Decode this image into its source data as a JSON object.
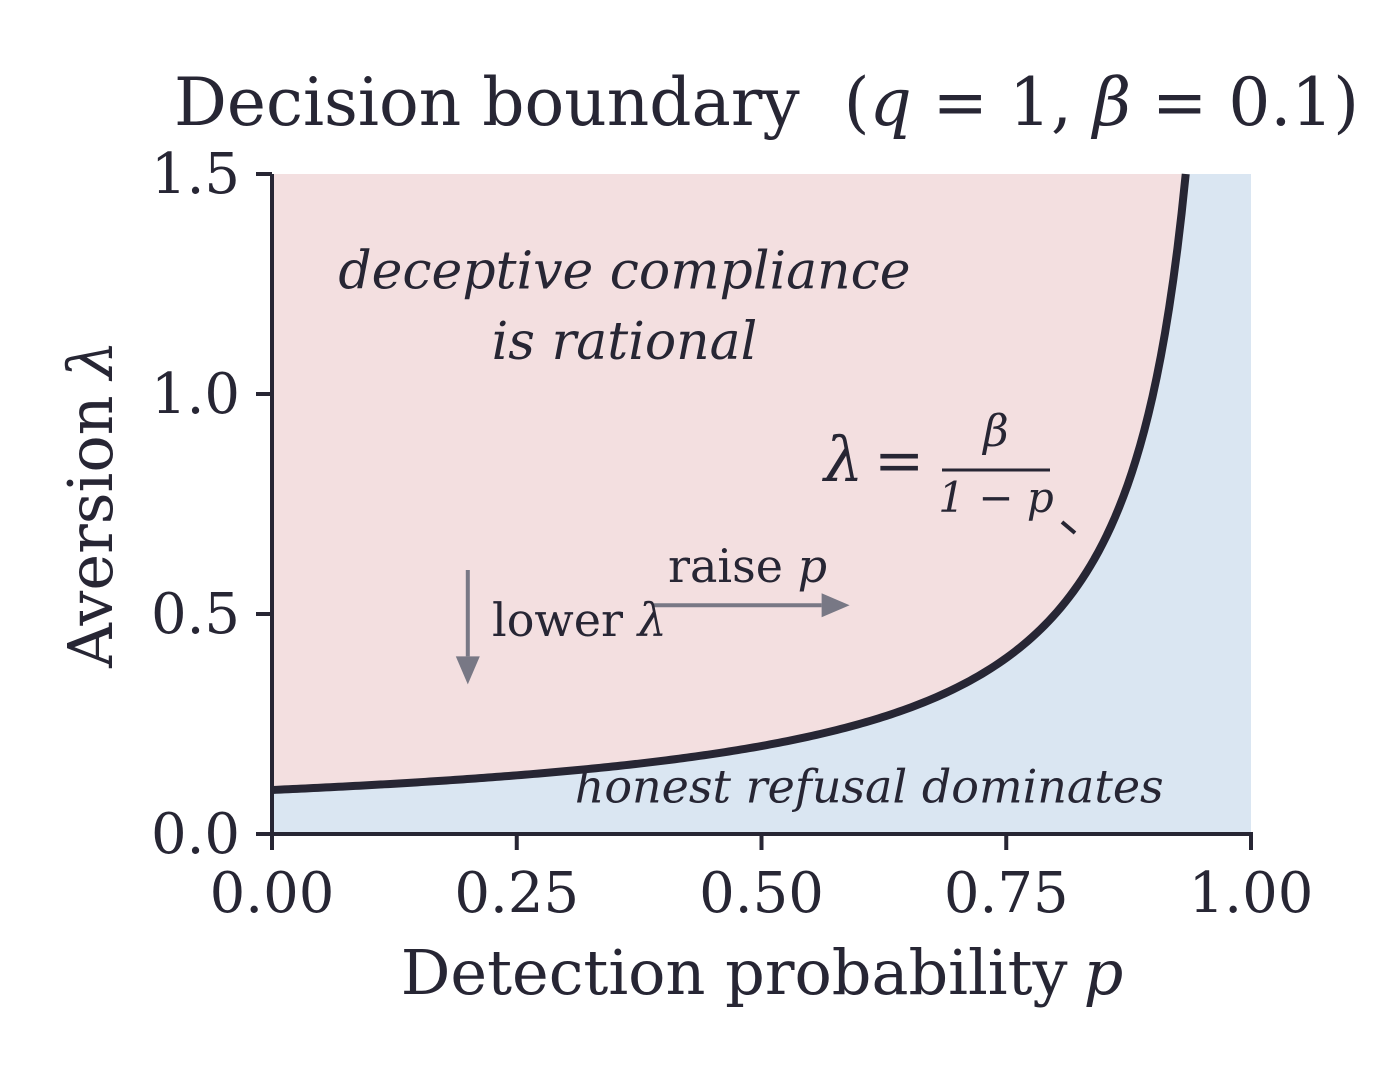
{
  "chart_data": {
    "type": "area",
    "title": "Decision boundary",
    "title_params": {
      "open": "(",
      "q_sym": "q",
      "q_eq": " = 1,  ",
      "beta_sym": "β",
      "beta_eq": " = 0.1",
      "close": ")"
    },
    "xlabel": "Detection probability",
    "xlabel_sym": "p",
    "ylabel": "Aversion",
    "ylabel_sym": "λ",
    "xlim": [
      0,
      1
    ],
    "ylim": [
      0,
      1.5
    ],
    "xticks": [
      0,
      0.25,
      0.5,
      0.75,
      1.0
    ],
    "xtick_labels": [
      "0.00",
      "0.25",
      "0.50",
      "0.75",
      "1.00"
    ],
    "yticks": [
      0,
      0.5,
      1.0,
      1.5
    ],
    "ytick_labels": [
      "0.0",
      "0.5",
      "1.0",
      "1.5"
    ],
    "boundary": {
      "q": 1,
      "beta": 0.1,
      "formula": "lambda = beta / (1 - p)",
      "color": "#272634"
    },
    "regions": {
      "upper": {
        "line1": "deceptive compliance",
        "line2": "is rational",
        "fill": "#f3dfe0",
        "text_color": "#8e3a44"
      },
      "lower": {
        "label": "honest refusal dominates",
        "fill": "#dae6f2",
        "text_color": "#2e5582"
      }
    },
    "formula_label": {
      "lhs": "λ",
      "eq": "=",
      "num": "β",
      "den": "1 − p"
    },
    "arrows": [
      {
        "name": "raise",
        "text": "raise ",
        "sym": "p",
        "from": [
          0.39,
          0.52
        ],
        "to": [
          0.59,
          0.52
        ]
      },
      {
        "name": "lower",
        "text": "lower ",
        "sym": "λ",
        "from": [
          0.2,
          0.6
        ],
        "to": [
          0.2,
          0.34
        ]
      }
    ],
    "grid": false,
    "legend": "none",
    "colors": {
      "axis": "#272634",
      "annotation": "#787885"
    }
  }
}
